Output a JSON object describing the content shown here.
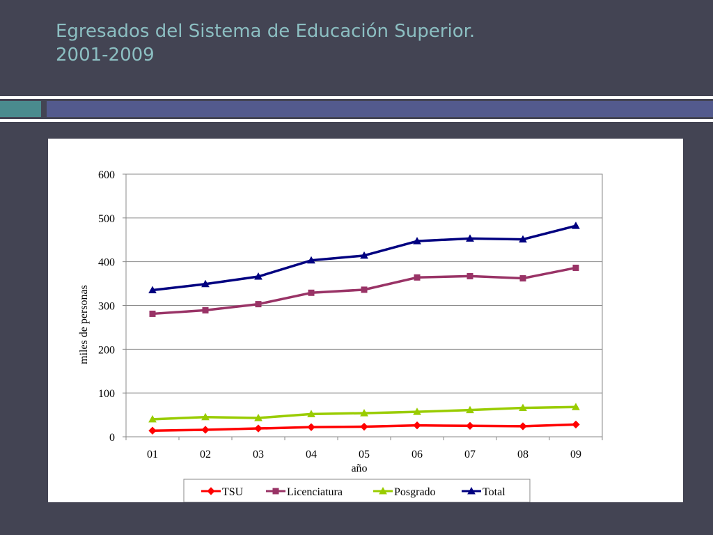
{
  "slide": {
    "title_line1": "Egresados del Sistema de Educación Superior.",
    "title_line2": "2001-2009"
  },
  "colors": {
    "background": "#434453",
    "title": "#8cbfc2",
    "band_teal": "#4a8b8e",
    "band_blue": "#535a8d"
  },
  "chart_data": {
    "type": "line",
    "title": "",
    "xlabel": "año",
    "ylabel": "miles de personas",
    "categories": [
      "01",
      "02",
      "03",
      "04",
      "05",
      "06",
      "07",
      "08",
      "09"
    ],
    "ylim": [
      0,
      600
    ],
    "yticks": [
      0,
      100,
      200,
      300,
      400,
      500,
      600
    ],
    "grid": true,
    "legend_position": "bottom",
    "series": [
      {
        "name": "TSU",
        "color": "#ff0000",
        "marker": "diamond",
        "values": [
          14,
          16,
          19,
          22,
          23,
          26,
          25,
          24,
          28
        ]
      },
      {
        "name": "Licenciatura",
        "color": "#993366",
        "marker": "square",
        "values": [
          281,
          289,
          303,
          329,
          336,
          364,
          367,
          362,
          386
        ]
      },
      {
        "name": "Posgrado",
        "color": "#99cc00",
        "marker": "triangle",
        "values": [
          40,
          45,
          43,
          52,
          54,
          57,
          61,
          66,
          68
        ]
      },
      {
        "name": "Total",
        "color": "#000080",
        "marker": "triangle",
        "values": [
          335,
          349,
          366,
          403,
          414,
          447,
          453,
          451,
          482
        ]
      }
    ]
  }
}
